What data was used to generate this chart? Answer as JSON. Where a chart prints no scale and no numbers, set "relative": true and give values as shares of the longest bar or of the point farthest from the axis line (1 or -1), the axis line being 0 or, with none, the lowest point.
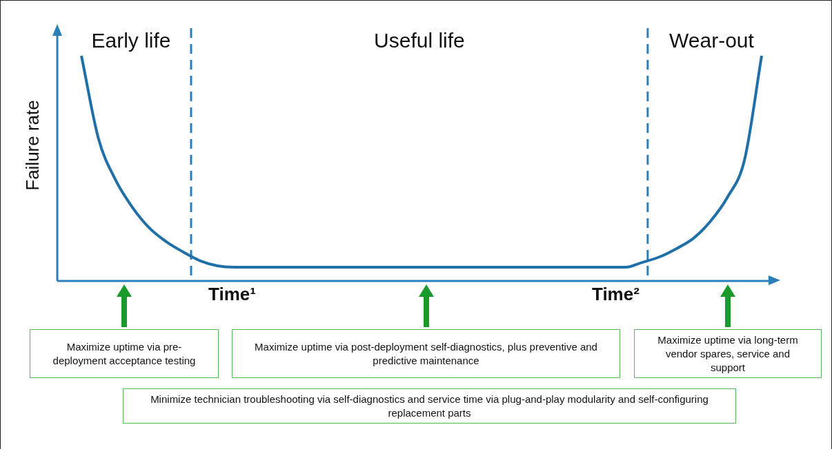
{
  "chart_data": {
    "type": "line",
    "relative": true,
    "ylabel": "Failure rate",
    "categories": [
      null,
      null,
      null,
      null,
      null,
      null,
      null,
      null,
      null,
      null,
      null,
      null,
      null,
      null,
      null,
      null,
      null,
      null,
      null,
      null,
      null,
      null,
      null,
      null,
      null,
      null,
      null,
      null,
      null,
      null,
      null,
      null,
      null,
      null,
      null,
      null,
      null,
      null,
      null,
      null,
      null
    ],
    "series": [
      {
        "color": "#1f6fa8",
        "values": [
          1.0,
          0.633,
          0.45,
          0.327,
          0.235,
          0.174,
          0.128,
          0.089,
          0.067,
          0.061,
          0.061,
          0.061,
          0.061,
          0.061,
          0.061,
          0.061,
          0.061,
          0.061,
          0.061,
          0.061,
          0.061,
          0.061,
          0.061,
          0.061,
          0.061,
          0.061,
          0.061,
          0.061,
          0.061,
          0.061,
          0.061,
          0.061,
          0.061,
          0.083,
          0.107,
          0.144,
          0.19,
          0.266,
          0.373,
          0.54,
          1.0
        ]
      }
    ],
    "annotations": [
      "Early life",
      "Useful life",
      "Wear-out",
      "Time¹",
      "Time²",
      "Maximize uptime via pre-deployment acceptance testing",
      "Maximize uptime via post-deployment self-diagnostics, plus preventive and predictive maintenance",
      "Maximize uptime via long-term vendor spares, service and support",
      "Minimize technician troubleshooting via self-diagnostics and service time via plug-and-play modularity and self-configuring replacement parts"
    ],
    "legend": false
  }
}
